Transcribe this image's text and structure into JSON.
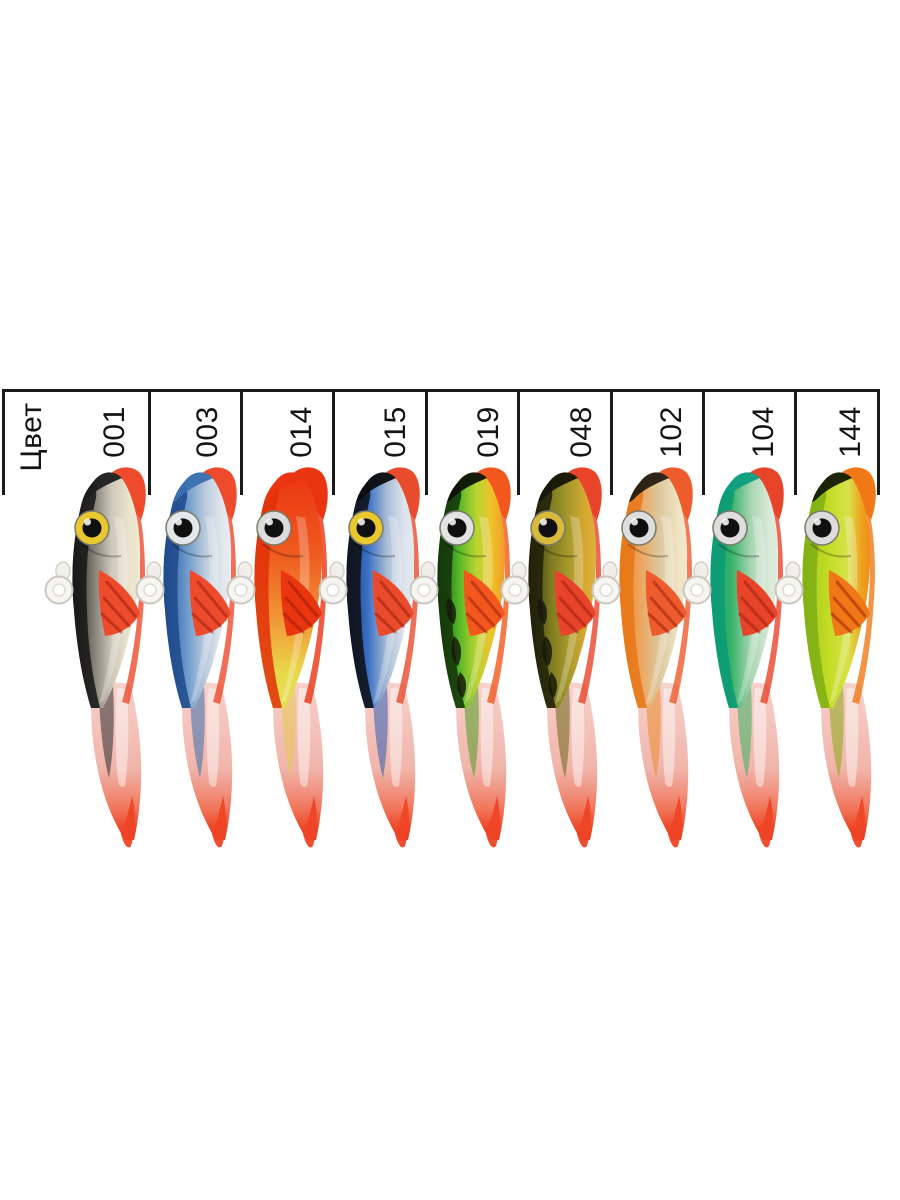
{
  "page": {
    "background": "#ffffff"
  },
  "table": {
    "header_label": "Цвет",
    "border_color": "#1a1a1a",
    "columns": [
      {
        "code": "001",
        "lure": {
          "name": "black-silver",
          "gradient": [
            [
              0,
              "#242424"
            ],
            [
              0.35,
              "#8d897f"
            ],
            [
              0.58,
              "#cfc8bb"
            ],
            [
              0.85,
              "#ede6cd"
            ],
            [
              1,
              "#efe9d4"
            ]
          ],
          "gradient_direction": "horizontal",
          "back": "#161616",
          "head_top": "#1d1d1d",
          "fin": "#ee4b2d",
          "eye": "#e9c72f",
          "skirt_streak": "#2e2e2e",
          "bars": false
        }
      },
      {
        "code": "003",
        "lure": {
          "name": "blue-silver",
          "gradient": [
            [
              0,
              "#27549b"
            ],
            [
              0.35,
              "#6d9bcb"
            ],
            [
              0.62,
              "#bccbdb"
            ],
            [
              0.88,
              "#e3e8ee"
            ],
            [
              1,
              "#e8ecf1"
            ]
          ],
          "gradient_direction": "horizontal",
          "back": "#1f4a8c",
          "head_top": "#3a6fb0",
          "fin": "#ee4b2d",
          "eye": "#e4e7ea",
          "skirt_streak": "#3c70ad",
          "bars": false
        }
      },
      {
        "code": "014",
        "lure": {
          "name": "red-head-yellow",
          "gradient": [
            [
              0,
              "#ea3511"
            ],
            [
              0.35,
              "#ef5b1f"
            ],
            [
              0.62,
              "#f29536"
            ],
            [
              0.85,
              "#e8d94a"
            ],
            [
              1,
              "#e4e054"
            ]
          ],
          "gradient_direction": "vertical",
          "back": "#e03008",
          "head_top": "#ea3511",
          "fin": "#ea3511",
          "eye": "#dcdcdc",
          "skirt_streak": "#e3c94e",
          "bars": false
        }
      },
      {
        "code": "015",
        "lure": {
          "name": "black-blue-silver",
          "gradient": [
            [
              0,
              "#173a75"
            ],
            [
              0.32,
              "#3a70c4"
            ],
            [
              0.6,
              "#a9bdd6"
            ],
            [
              0.85,
              "#dde4ec"
            ],
            [
              1,
              "#e2e8ef"
            ]
          ],
          "gradient_direction": "horizontal",
          "back": "#0e0e12",
          "head_top": "#0c0c10",
          "fin": "#e94b2d",
          "eye": "#e9c72f",
          "skirt_streak": "#2d5cb2",
          "bars": false
        }
      },
      {
        "code": "019",
        "lure": {
          "name": "firetiger",
          "gradient": [
            [
              0,
              "#1d4a10"
            ],
            [
              0.3,
              "#4fb526"
            ],
            [
              0.58,
              "#b9d431"
            ],
            [
              0.8,
              "#efc22a"
            ],
            [
              1,
              "#f09a28"
            ]
          ],
          "gradient_direction": "horizontal",
          "back": "#13340a",
          "head_top": "#0d1206",
          "fin": "#f2581e",
          "eye": "#e3e3e3",
          "skirt_streak": "#4f9d22",
          "bars": true
        }
      },
      {
        "code": "048",
        "lure": {
          "name": "olive-gold-perch",
          "gradient": [
            [
              0,
              "#2c2c0e"
            ],
            [
              0.32,
              "#7c7a20"
            ],
            [
              0.6,
              "#a89a2c"
            ],
            [
              0.85,
              "#d8a832"
            ],
            [
              1,
              "#dbb13c"
            ]
          ],
          "gradient_direction": "horizontal",
          "back": "#20200a",
          "head_top": "#15150a",
          "fin": "#e8442a",
          "eye": "#d9b93a",
          "skirt_streak": "#6b6519",
          "bars": true
        }
      },
      {
        "code": "102",
        "lure": {
          "name": "orange-champagne",
          "gradient": [
            [
              0,
              "#ef7f22"
            ],
            [
              0.3,
              "#eda45c"
            ],
            [
              0.6,
              "#dcc9a0"
            ],
            [
              0.88,
              "#f0e4c4"
            ],
            [
              1,
              "#f2e9cf"
            ]
          ],
          "gradient_direction": "horizontal",
          "back": "#e87718",
          "head_top": "#241c12",
          "fin": "#ee5b2d",
          "eye": "#dedede",
          "skirt_streak": "#ea8c2c",
          "bars": false
        }
      },
      {
        "code": "104",
        "lure": {
          "name": "teal-green-silver",
          "gradient": [
            [
              0,
              "#0fa37d"
            ],
            [
              0.3,
              "#33b167"
            ],
            [
              0.6,
              "#a9d5b2"
            ],
            [
              0.88,
              "#dcead9"
            ],
            [
              1,
              "#e0eddd"
            ]
          ],
          "gradient_direction": "horizontal",
          "back": "#0c9a74",
          "head_top": "#0e9e80",
          "fin": "#e8442a",
          "eye": "#dedede",
          "skirt_streak": "#39b161",
          "bars": false
        }
      },
      {
        "code": "144",
        "lure": {
          "name": "chartreuse-orange",
          "gradient": [
            [
              0,
              "#9ec41c"
            ],
            [
              0.38,
              "#c2dc25"
            ],
            [
              0.68,
              "#d8e24a"
            ],
            [
              0.88,
              "#f0a01e"
            ],
            [
              1,
              "#ef8c16"
            ]
          ],
          "gradient_direction": "horizontal",
          "back": "#7fae14",
          "head_top": "#141a06",
          "fin": "#f07816",
          "eye": "#dcdcdc",
          "skirt_streak": "#8aa816",
          "bars": false
        }
      }
    ]
  },
  "skirt": {
    "stops": [
      [
        0,
        "rgba(246,205,198,0.9)"
      ],
      [
        0.55,
        "rgba(239,175,164,0.92)"
      ],
      [
        0.8,
        "#f1775c"
      ],
      [
        0.93,
        "#ee4526"
      ],
      [
        1,
        "#ea3a1e"
      ]
    ],
    "tip": "#ee4526",
    "highlight": "#ffffff"
  }
}
